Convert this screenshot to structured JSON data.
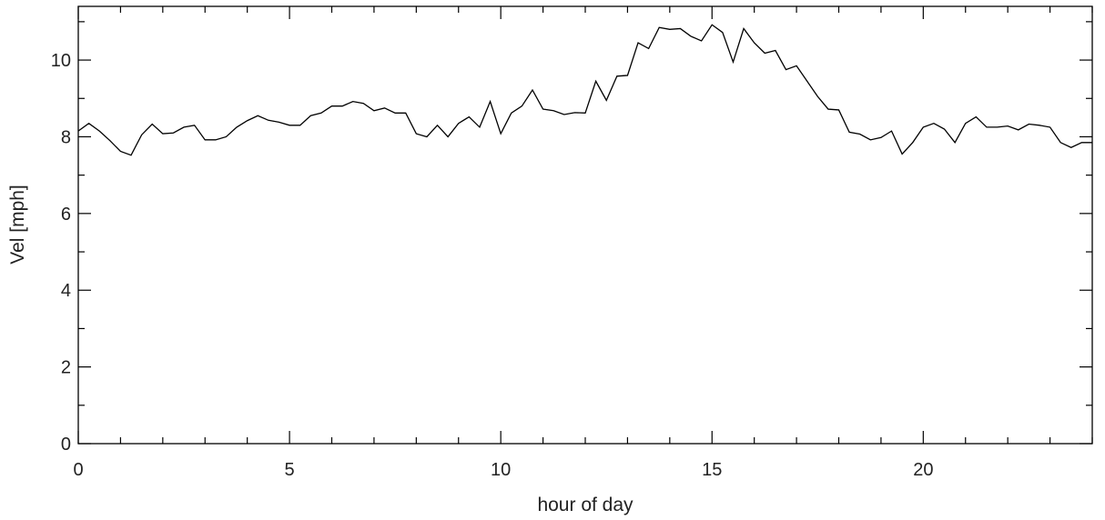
{
  "chart_data": {
    "type": "line",
    "title": "",
    "xlabel": "hour of day",
    "ylabel": "Vel [mph]",
    "xlim": [
      0,
      24
    ],
    "ylim": [
      0,
      11.4
    ],
    "xticks": [
      0,
      5,
      10,
      15,
      20
    ],
    "xtick_labels": [
      "0",
      "5",
      "10",
      "15",
      "20"
    ],
    "xminor_step": 1,
    "yticks": [
      0,
      2,
      4,
      6,
      8,
      10
    ],
    "ytick_labels": [
      "0",
      "2",
      "4",
      "6",
      "8",
      "10"
    ],
    "yminor_step": 1,
    "grid": false,
    "series": [
      {
        "x": [
          0.0,
          0.25,
          0.5,
          0.75,
          1.0,
          1.25,
          1.5,
          1.75,
          2.0,
          2.25,
          2.5,
          2.75,
          3.0,
          3.25,
          3.5,
          3.75,
          4.0,
          4.25,
          4.5,
          4.75,
          5.0,
          5.25,
          5.5,
          5.75,
          6.0,
          6.25,
          6.5,
          6.75,
          7.0,
          7.25,
          7.5,
          7.75,
          8.0,
          8.25,
          8.5,
          8.75,
          9.0,
          9.25,
          9.5,
          9.75,
          10.0,
          10.25,
          10.5,
          10.75,
          11.0,
          11.25,
          11.5,
          11.75,
          12.0,
          12.25,
          12.5,
          12.75,
          13.0,
          13.25,
          13.5,
          13.75,
          14.0,
          14.25,
          14.5,
          14.75,
          15.0,
          15.25,
          15.5,
          15.75,
          16.0,
          16.25,
          16.5,
          16.75,
          17.0,
          17.25,
          17.5,
          17.75,
          18.0,
          18.25,
          18.5,
          18.75,
          19.0,
          19.25,
          19.5,
          19.75,
          20.0,
          20.25,
          20.5,
          20.75,
          21.0,
          21.25,
          21.5,
          21.75,
          22.0,
          22.25,
          22.5,
          22.75,
          23.0,
          23.25,
          23.5,
          23.75,
          24.0
        ],
        "values": [
          8.15,
          8.35,
          8.15,
          7.9,
          7.62,
          7.52,
          8.05,
          8.33,
          8.08,
          8.1,
          8.25,
          8.3,
          7.92,
          7.92,
          8.0,
          8.25,
          8.42,
          8.55,
          8.43,
          8.38,
          8.3,
          8.3,
          8.55,
          8.62,
          8.8,
          8.8,
          8.92,
          8.87,
          8.68,
          8.75,
          8.62,
          8.62,
          8.08,
          8.0,
          8.3,
          8.0,
          8.35,
          8.52,
          8.25,
          8.92,
          8.08,
          8.62,
          8.8,
          9.22,
          8.72,
          8.68,
          8.58,
          8.63,
          8.62,
          9.45,
          8.95,
          9.58,
          9.6,
          10.45,
          10.3,
          10.85,
          10.8,
          10.82,
          10.62,
          10.5,
          10.92,
          10.72,
          9.95,
          10.82,
          10.45,
          10.18,
          10.25,
          9.75,
          9.85,
          9.45,
          9.05,
          8.72,
          8.7,
          8.12,
          8.07,
          7.92,
          7.98,
          8.15,
          7.55,
          7.85,
          8.25,
          8.35,
          8.2,
          7.85,
          8.35,
          8.52,
          8.25,
          8.25,
          8.28,
          8.18,
          8.33,
          8.3,
          8.25,
          7.85,
          7.72,
          7.85,
          7.85
        ]
      }
    ]
  }
}
